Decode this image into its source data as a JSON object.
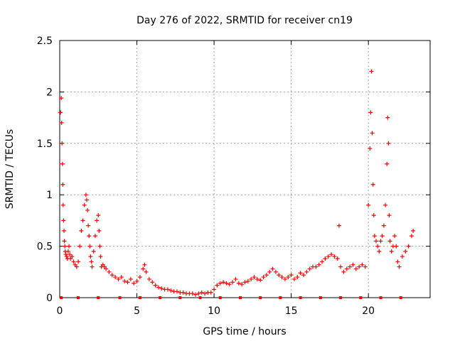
{
  "chart_data": {
    "type": "scatter",
    "title": "Day 276 of 2022, SRMTID for receiver cn19",
    "xlabel": "GPS time / hours",
    "ylabel": "SRMTID / TECUs",
    "xlim": [
      0,
      24
    ],
    "ylim": [
      0,
      2.5
    ],
    "xticks": [
      0,
      5,
      10,
      15,
      20
    ],
    "xtick_labels": [
      "0",
      "5",
      "10",
      "15",
      "20"
    ],
    "yticks": [
      0,
      0.5,
      1,
      1.5,
      2,
      2.5
    ],
    "ytick_labels": [
      "0",
      "0.5",
      "1",
      "1.5",
      "2",
      "2.5"
    ],
    "grid": true,
    "marker": "+",
    "color": "#ff0000",
    "series": [
      {
        "name": "SRMTID",
        "x": [
          0.05,
          0.1,
          0.12,
          0.15,
          0.18,
          0.2,
          0.22,
          0.25,
          0.28,
          0.3,
          0.33,
          0.36,
          0.4,
          0.45,
          0.5,
          0.55,
          0.6,
          0.65,
          0.7,
          0.8,
          0.9,
          1.0,
          1.1,
          1.2,
          1.3,
          1.4,
          1.5,
          1.6,
          1.7,
          1.75,
          1.8,
          1.85,
          1.9,
          1.95,
          2.0,
          2.05,
          2.1,
          2.2,
          2.3,
          2.4,
          2.5,
          2.55,
          2.6,
          2.65,
          2.7,
          2.8,
          2.9,
          3.0,
          3.2,
          3.4,
          3.6,
          3.8,
          4.0,
          4.2,
          4.4,
          4.6,
          4.8,
          5.0,
          5.2,
          5.4,
          5.5,
          5.6,
          5.8,
          6.0,
          6.2,
          6.4,
          6.6,
          6.8,
          7.0,
          7.2,
          7.4,
          7.6,
          7.8,
          8.0,
          8.2,
          8.4,
          8.6,
          8.8,
          9.0,
          9.2,
          9.4,
          9.6,
          9.8,
          10.0,
          10.2,
          10.4,
          10.6,
          10.8,
          11.0,
          11.2,
          11.4,
          11.6,
          11.8,
          12.0,
          12.2,
          12.4,
          12.6,
          12.8,
          13.0,
          13.2,
          13.4,
          13.6,
          13.8,
          14.0,
          14.2,
          14.4,
          14.6,
          14.8,
          15.0,
          15.2,
          15.4,
          15.6,
          15.8,
          16.0,
          16.2,
          16.4,
          16.6,
          16.8,
          17.0,
          17.2,
          17.4,
          17.6,
          17.8,
          18.0,
          18.1,
          18.2,
          18.4,
          18.6,
          18.8,
          19.0,
          19.2,
          19.4,
          19.6,
          19.8,
          20.0,
          20.1,
          20.15,
          20.2,
          20.25,
          20.3,
          20.35,
          20.4,
          20.5,
          20.6,
          20.7,
          20.8,
          20.9,
          21.0,
          21.1,
          21.2,
          21.25,
          21.3,
          21.35,
          21.4,
          21.5,
          21.6,
          21.7,
          21.8,
          21.9,
          22.0,
          22.2,
          22.4,
          22.6,
          22.8,
          22.9
        ],
        "y": [
          1.8,
          1.94,
          1.7,
          1.5,
          1.3,
          1.1,
          0.9,
          0.75,
          0.65,
          0.55,
          0.5,
          0.45,
          0.42,
          0.4,
          0.38,
          0.45,
          0.5,
          0.42,
          0.38,
          0.4,
          0.35,
          0.32,
          0.3,
          0.35,
          0.5,
          0.65,
          0.75,
          0.9,
          1.0,
          0.95,
          0.85,
          0.7,
          0.6,
          0.5,
          0.4,
          0.35,
          0.3,
          0.45,
          0.6,
          0.75,
          0.8,
          0.65,
          0.5,
          0.4,
          0.3,
          0.32,
          0.3,
          0.28,
          0.25,
          0.22,
          0.2,
          0.18,
          0.2,
          0.16,
          0.15,
          0.18,
          0.14,
          0.16,
          0.2,
          0.28,
          0.32,
          0.25,
          0.18,
          0.15,
          0.12,
          0.1,
          0.09,
          0.08,
          0.08,
          0.07,
          0.06,
          0.06,
          0.05,
          0.05,
          0.04,
          0.04,
          0.04,
          0.03,
          0.04,
          0.05,
          0.04,
          0.05,
          0.05,
          0.08,
          0.12,
          0.14,
          0.15,
          0.14,
          0.13,
          0.15,
          0.18,
          0.14,
          0.13,
          0.15,
          0.16,
          0.18,
          0.2,
          0.18,
          0.17,
          0.2,
          0.22,
          0.25,
          0.28,
          0.25,
          0.22,
          0.2,
          0.18,
          0.2,
          0.22,
          0.18,
          0.2,
          0.24,
          0.22,
          0.25,
          0.28,
          0.3,
          0.3,
          0.32,
          0.35,
          0.38,
          0.4,
          0.42,
          0.4,
          0.38,
          0.7,
          0.3,
          0.25,
          0.28,
          0.3,
          0.32,
          0.28,
          0.3,
          0.32,
          0.3,
          0.9,
          1.45,
          1.8,
          2.2,
          1.6,
          1.1,
          0.8,
          0.6,
          0.55,
          0.5,
          0.45,
          0.55,
          0.6,
          0.7,
          0.9,
          1.3,
          1.75,
          1.5,
          0.8,
          0.55,
          0.45,
          0.5,
          0.6,
          0.5,
          0.35,
          0.3,
          0.4,
          0.45,
          0.5,
          0.6,
          0.65
        ]
      }
    ],
    "baseline_markers_x": [
      0.1,
      1.2,
      2.5,
      3.9,
      5.2,
      6.5,
      7.8,
      9.1,
      10.4,
      11.7,
      13.0,
      14.3,
      15.6,
      16.9,
      18.2,
      19.5,
      20.8,
      22.1
    ]
  }
}
